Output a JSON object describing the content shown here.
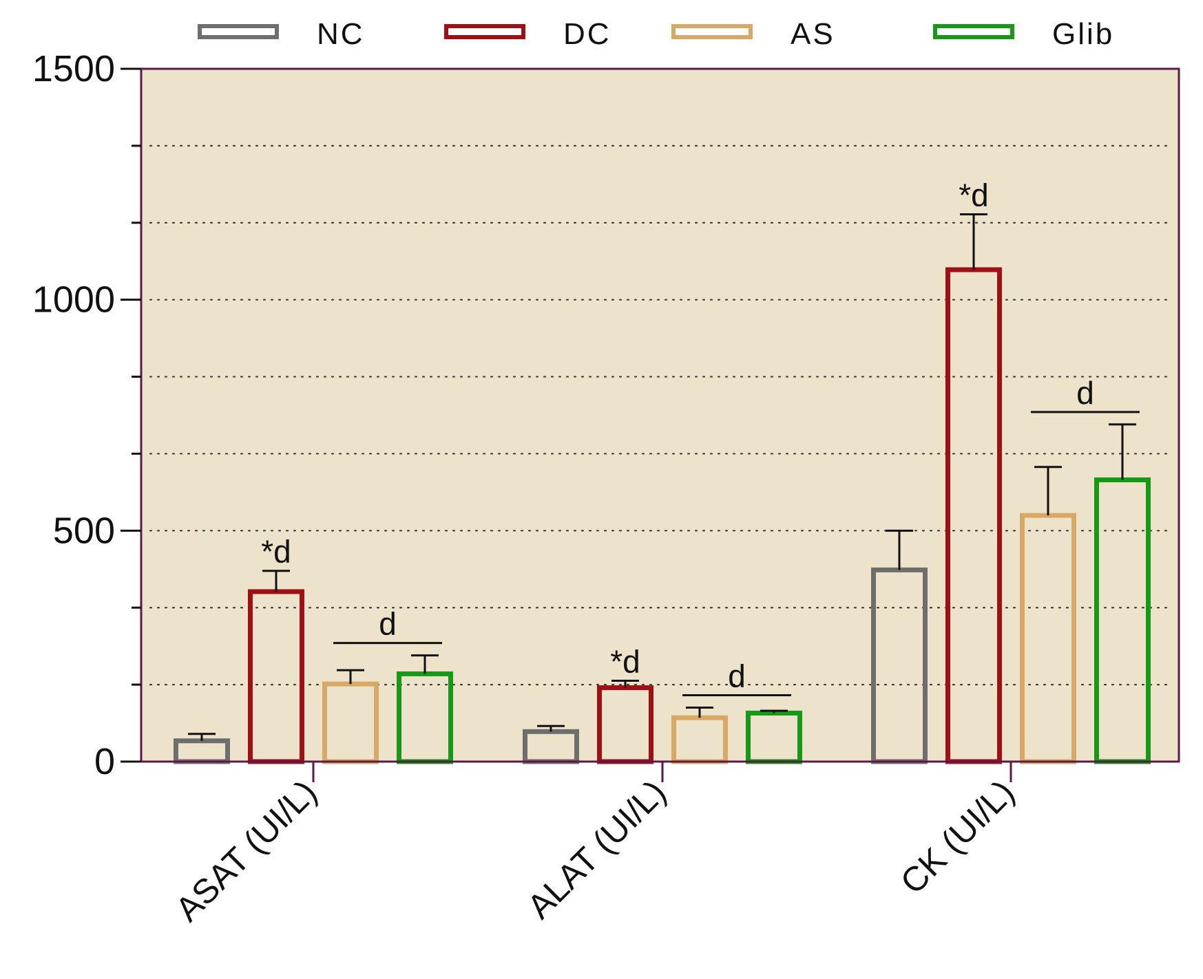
{
  "chart_data": {
    "type": "bar",
    "categories": [
      "ASAT (UI/L)",
      "ALAT (UI/L)",
      "CK (UI/L)"
    ],
    "series": [
      {
        "name": "NC",
        "color": "#6e6e6e",
        "values": [
          45,
          65,
          415
        ],
        "errors": [
          15,
          12,
          85
        ]
      },
      {
        "name": "DC",
        "color": "#9e1016",
        "values": [
          368,
          160,
          1065
        ],
        "errors": [
          45,
          15,
          120
        ]
      },
      {
        "name": "AS",
        "color": "#d8a966",
        "values": [
          168,
          95,
          533
        ],
        "errors": [
          30,
          22,
          105
        ]
      },
      {
        "name": "Glib",
        "color": "#179817",
        "values": [
          190,
          105,
          610
        ],
        "errors": [
          40,
          5,
          120
        ]
      }
    ],
    "yticks": [
      "0",
      "500",
      "1000",
      "1500"
    ],
    "ylim": [
      0,
      1500
    ],
    "grid": "dotted",
    "legend": {
      "position": "top",
      "labels": [
        "NC",
        "DC",
        "AS",
        "Glib"
      ]
    },
    "background_color": "#ede3cb",
    "annotations": [
      {
        "text": "*d",
        "category": 0,
        "series": 1
      },
      {
        "text": "d",
        "category": 0,
        "series_range": [
          2,
          3
        ]
      },
      {
        "text": "*d",
        "category": 1,
        "series": 1
      },
      {
        "text": "d",
        "category": 1,
        "series_range": [
          2,
          3
        ]
      },
      {
        "text": "*d",
        "category": 2,
        "series": 1
      },
      {
        "text": "d",
        "category": 2,
        "series_range": [
          2,
          3
        ]
      }
    ]
  }
}
